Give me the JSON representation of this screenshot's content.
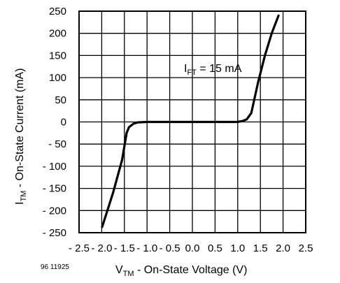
{
  "chart_data": {
    "type": "line",
    "title": "",
    "xlabel": {
      "main": "V",
      "sub": "TM",
      "rest": " - On-State Voltage (V)"
    },
    "ylabel": {
      "main": "I",
      "sub": "TM",
      "rest": " - On-State Current (mA)"
    },
    "xlim": [
      -2.5,
      2.5
    ],
    "ylim": [
      -250,
      250
    ],
    "x_ticks": [
      -2.5,
      -2.0,
      -1.5,
      -1.0,
      -0.5,
      0.0,
      0.5,
      1.0,
      1.5,
      2.0,
      2.5
    ],
    "x_tick_labels": [
      "- 2.5",
      "- 2.0",
      "- 1.5",
      "- 1.0",
      "- 0.5",
      "0.0",
      "0.5",
      "1.0",
      "1.5",
      "2.0",
      "2.5"
    ],
    "y_ticks": [
      250,
      200,
      150,
      100,
      50,
      0,
      -50,
      -100,
      -150,
      -200,
      -250
    ],
    "y_tick_labels": [
      "250",
      "200",
      "150",
      "100",
      "50",
      "0",
      "- 50",
      "- 100",
      "- 150",
      "- 200",
      "- 250"
    ],
    "grid": true,
    "annotation": {
      "main": "I",
      "sub": "FT",
      "rest": " = 15 mA"
    },
    "figure_id": "96 11925",
    "line_color": "#000000",
    "series": [
      {
        "x": [
          -1.99,
          -1.75,
          -1.55,
          -1.45,
          -1.4,
          -1.3,
          -1.2,
          -1.0,
          0.0,
          1.0,
          1.1,
          1.2,
          1.3,
          1.45,
          1.6,
          1.75,
          1.9
        ],
        "y": [
          -237,
          -160,
          -85,
          -25,
          -12,
          -4,
          -1,
          0,
          0,
          0,
          2,
          6,
          20,
          90,
          150,
          200,
          240
        ]
      }
    ]
  }
}
